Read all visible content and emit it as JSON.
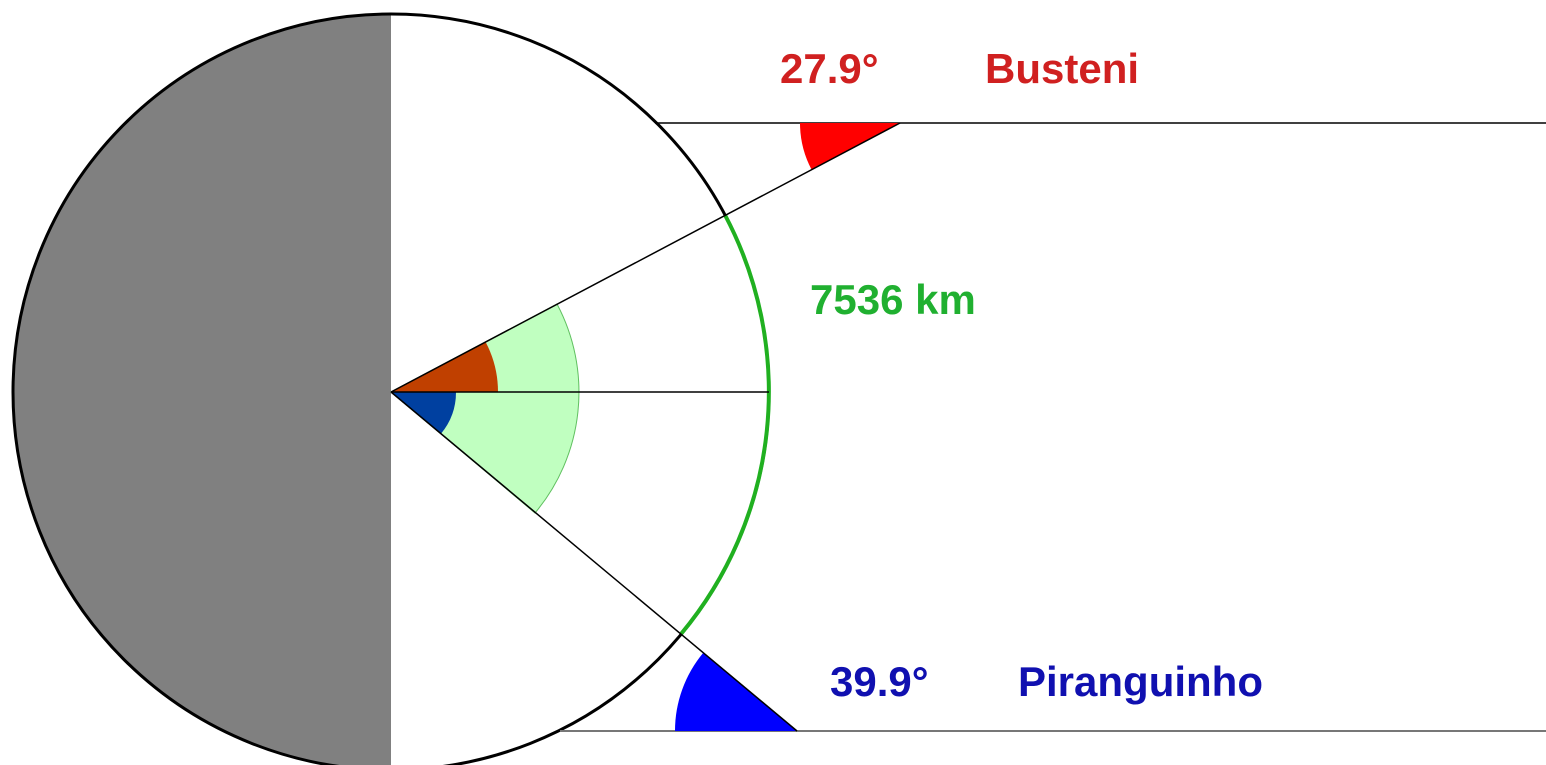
{
  "labels": {
    "top_angle": "27.9°",
    "top_place": "Busteni",
    "arc_distance": "7536 km",
    "bottom_angle": "39.9°",
    "bottom_place": "Piranguinho"
  }
}
